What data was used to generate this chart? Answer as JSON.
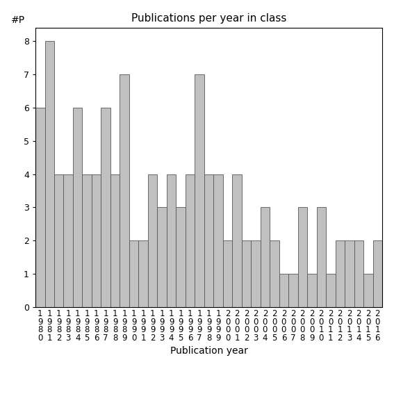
{
  "years": [
    "1980",
    "1981",
    "1982",
    "1983",
    "1984",
    "1985",
    "1986",
    "1987",
    "1988",
    "1989",
    "1990",
    "1991",
    "1992",
    "1993",
    "1994",
    "1995",
    "1996",
    "1997",
    "1998",
    "1999",
    "2000",
    "2001",
    "2002",
    "2003",
    "2004",
    "2005",
    "2006",
    "2007",
    "2008",
    "2009",
    "2010",
    "2011",
    "2012",
    "2013",
    "2014",
    "2015",
    "2016"
  ],
  "values": [
    6,
    8,
    4,
    4,
    6,
    4,
    4,
    6,
    4,
    7,
    2,
    2,
    4,
    3,
    4,
    3,
    4,
    7,
    4,
    4,
    2,
    4,
    2,
    2,
    3,
    2,
    1,
    1,
    3,
    1,
    3,
    1,
    2,
    2,
    2,
    1,
    2
  ],
  "bar_color": "#c0c0c0",
  "bar_edgecolor": "#555555",
  "title": "Publications per year in class",
  "xlabel": "Publication year",
  "ylabel": "#P",
  "ylim": [
    0,
    8.4
  ],
  "yticks": [
    0,
    1,
    2,
    3,
    4,
    5,
    6,
    7,
    8
  ],
  "background_color": "#ffffff",
  "title_fontsize": 11,
  "label_fontsize": 10,
  "tick_fontsize": 8.5
}
